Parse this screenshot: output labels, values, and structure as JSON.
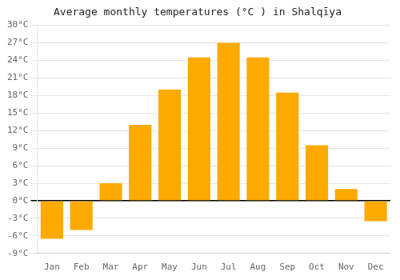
{
  "chart_data": {
    "type": "bar",
    "title": "Average monthly temperatures (°C ) in Shalqīya",
    "categories": [
      "Jan",
      "Feb",
      "Mar",
      "Apr",
      "May",
      "Jun",
      "Jul",
      "Aug",
      "Sep",
      "Oct",
      "Nov",
      "Dec"
    ],
    "values": [
      -6.5,
      -5.0,
      3.0,
      13.0,
      19.0,
      24.5,
      27.0,
      24.5,
      18.5,
      9.5,
      2.0,
      -3.5
    ],
    "color": "#FFAA00",
    "ylim": [
      -9,
      30
    ],
    "yticks": [
      {
        "value": -9,
        "label": "-9°C"
      },
      {
        "value": -6,
        "label": "-6°C"
      },
      {
        "value": -3,
        "label": "-3°C"
      },
      {
        "value": 0,
        "label": "0°C"
      },
      {
        "value": 3,
        "label": "3°C"
      },
      {
        "value": 6,
        "label": "6°C"
      },
      {
        "value": 9,
        "label": "9°C"
      },
      {
        "value": 12,
        "label": "12°C"
      },
      {
        "value": 15,
        "label": "15°C"
      },
      {
        "value": 18,
        "label": "18°C"
      },
      {
        "value": 21,
        "label": "21°C"
      },
      {
        "value": 24,
        "label": "24°C"
      },
      {
        "value": 27,
        "label": "27°C"
      },
      {
        "value": 30,
        "label": "30°C"
      }
    ],
    "grid": true
  }
}
